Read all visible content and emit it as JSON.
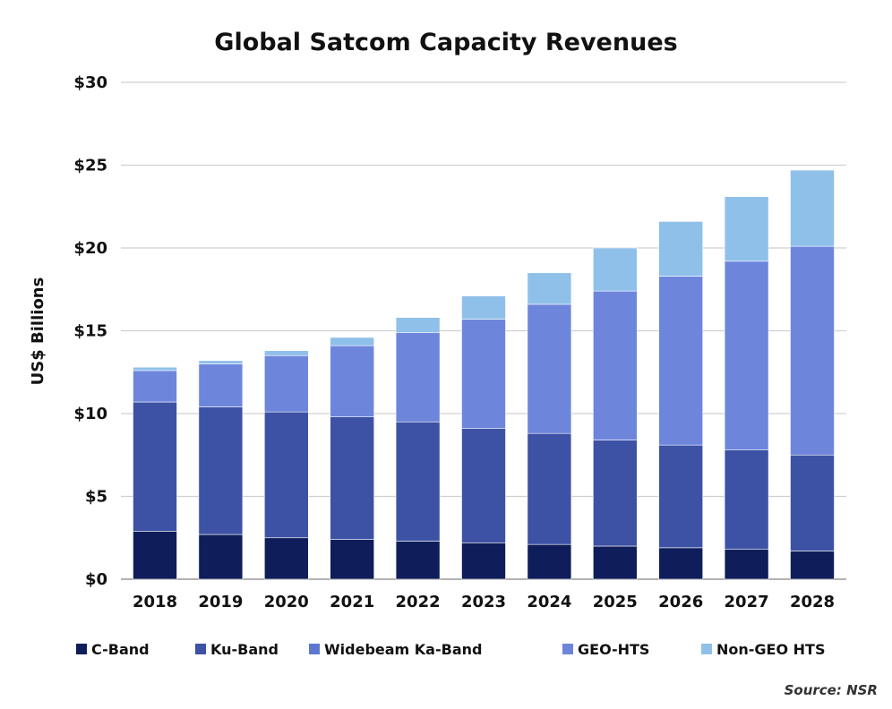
{
  "chart_data": {
    "type": "bar",
    "stacked": true,
    "title": "Global Satcom Capacity Revenues",
    "ylabel": "US$ Billions",
    "xlabel": "",
    "ylim": [
      0,
      30
    ],
    "yticks": [
      0,
      5,
      10,
      15,
      20,
      25,
      30
    ],
    "ytick_labels": [
      "$0",
      "$5",
      "$10",
      "$15",
      "$20",
      "$25",
      "$30"
    ],
    "grid": true,
    "legend_position": "bottom",
    "categories": [
      "2018",
      "2019",
      "2020",
      "2021",
      "2022",
      "2023",
      "2024",
      "2025",
      "2026",
      "2027",
      "2028"
    ],
    "series": [
      {
        "name": "C-Band",
        "color": "#0f1e5a",
        "values": [
          2.9,
          2.7,
          2.5,
          2.4,
          2.3,
          2.2,
          2.1,
          2.0,
          1.9,
          1.8,
          1.7
        ]
      },
      {
        "name": "Ku-Band",
        "color": "#3d52a5",
        "values": [
          7.8,
          7.7,
          7.6,
          7.4,
          7.2,
          6.9,
          6.7,
          6.4,
          6.2,
          6.0,
          5.8
        ]
      },
      {
        "name": "Widebeam Ka-Band",
        "color": "#5e78d0",
        "values": [
          0,
          0,
          0,
          0,
          0,
          0,
          0,
          0,
          0,
          0,
          0
        ]
      },
      {
        "name": "GEO-HTS",
        "color": "#6d86dc",
        "values": [
          1.9,
          2.6,
          3.4,
          4.3,
          5.4,
          6.6,
          7.8,
          9.0,
          10.2,
          11.4,
          12.6
        ]
      },
      {
        "name": "Non-GEO HTS",
        "color": "#8fc0ea",
        "values": [
          0.2,
          0.2,
          0.3,
          0.5,
          0.9,
          1.4,
          1.9,
          2.6,
          3.3,
          3.9,
          4.6
        ]
      }
    ],
    "source": "Source: NSR"
  }
}
